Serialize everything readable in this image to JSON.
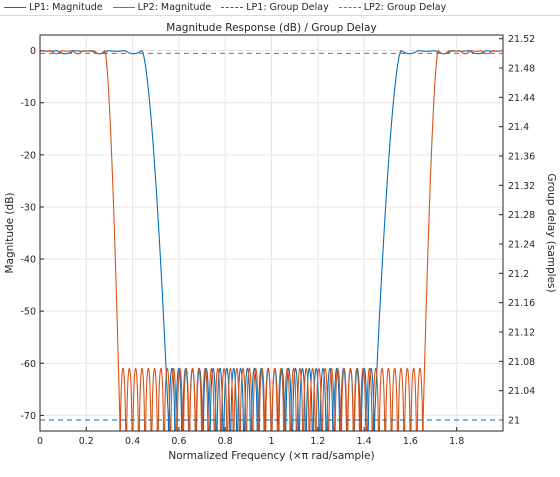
{
  "legend": [
    {
      "label": "LP1: Magnitude",
      "color": "#0072BD",
      "style": "solid"
    },
    {
      "label": "LP2: Magnitude",
      "color": "#D95319",
      "style": "solid"
    },
    {
      "label": "LP1: Group Delay",
      "color": "#0072BD",
      "style": "dashed"
    },
    {
      "label": "LP2: Group Delay",
      "color": "#D95319",
      "style": "dashed"
    }
  ],
  "chart_data": {
    "type": "line",
    "title": "Magnitude Response (dB) / Group Delay",
    "xlabel": "Normalized Frequency (×π rad/sample)",
    "ylabel": "Magnitude (dB)",
    "ylabel_right": "Group delay (samples)",
    "xlim": [
      0,
      2
    ],
    "ylim": [
      -73,
      3
    ],
    "ylim_right": [
      20.985,
      21.525
    ],
    "xticks": [
      "0",
      "0.2",
      "0.4",
      "0.6",
      "0.8",
      "1",
      "1.2",
      "1.4",
      "1.6",
      "1.8"
    ],
    "yticks": [
      "0",
      "-10",
      "-20",
      "-30",
      "-40",
      "-50",
      "-60",
      "-70"
    ],
    "yticks_right": [
      "21",
      "21.04",
      "21.08",
      "21.12",
      "21.16",
      "21.2",
      "21.24",
      "21.28",
      "21.32",
      "21.36",
      "21.4",
      "21.44",
      "21.48",
      "21.52"
    ],
    "grid": true,
    "series": [
      {
        "name": "LP1: Magnitude",
        "axis": "left",
        "color": "#0072BD",
        "passband_edge": 0.44,
        "stopband_edge": 0.555,
        "passband_ripple_db": 0.6,
        "stopband_level_db": -61,
        "stopband_lobes": 15
      },
      {
        "name": "LP2: Magnitude",
        "axis": "left",
        "color": "#D95319",
        "passband_edge": 0.28,
        "stopband_edge": 0.345,
        "passband_ripple_db": 0.6,
        "stopband_level_db": -61,
        "stopband_lobes": 24
      },
      {
        "name": "LP1: Group Delay",
        "axis": "right",
        "color": "#0072BD",
        "dashed": true,
        "value": 21
      },
      {
        "name": "LP2: Group Delay",
        "axis": "right",
        "color": "#D95319",
        "dashed": true,
        "value": 21.5
      }
    ]
  }
}
